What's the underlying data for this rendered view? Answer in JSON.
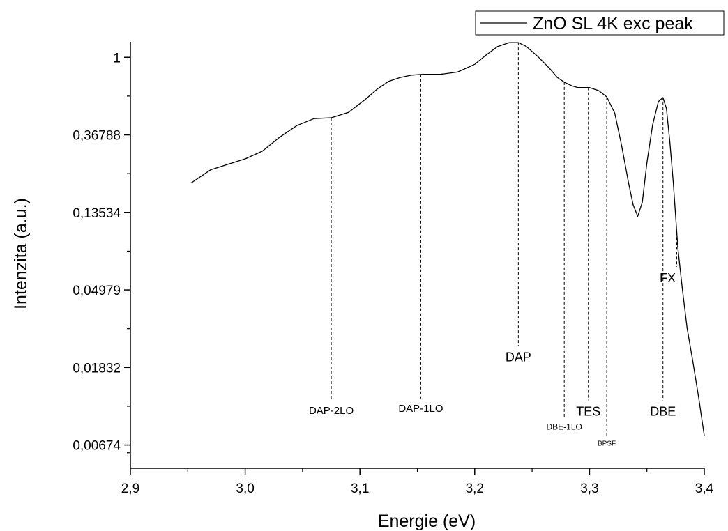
{
  "chart_data": {
    "type": "line",
    "xlabel": "Energie (eV)",
    "ylabel": "Intenzita (a.u.)",
    "xlim": [
      2.9,
      3.4
    ],
    "ylim_ln": [
      -5.3,
      0.2
    ],
    "y_scale": "natural-log",
    "grid": false,
    "legend_position": "top-right",
    "x_ticks": [
      {
        "value": 2.9,
        "label": "2,9"
      },
      {
        "value": 3.0,
        "label": "3,0"
      },
      {
        "value": 3.1,
        "label": "3,1"
      },
      {
        "value": 3.2,
        "label": "3,2"
      },
      {
        "value": 3.3,
        "label": "3,3"
      },
      {
        "value": 3.4,
        "label": "3,4"
      }
    ],
    "y_ticks": [
      {
        "value": 1,
        "label": "1"
      },
      {
        "value": 0.36788,
        "label": "0,36788"
      },
      {
        "value": 0.13534,
        "label": "0,13534"
      },
      {
        "value": 0.04979,
        "label": "0,04979"
      },
      {
        "value": 0.01832,
        "label": "0,01832"
      },
      {
        "value": 0.00674,
        "label": "0,00674"
      }
    ],
    "series": [
      {
        "name": "ZnO SL 4K exc peak",
        "x": [
          2.953,
          2.97,
          2.985,
          3.0,
          3.015,
          3.03,
          3.045,
          3.06,
          3.075,
          3.09,
          3.105,
          3.115,
          3.125,
          3.135,
          3.145,
          3.155,
          3.17,
          3.185,
          3.2,
          3.21,
          3.22,
          3.23,
          3.238,
          3.245,
          3.255,
          3.265,
          3.272,
          3.278,
          3.285,
          3.29,
          3.3,
          3.308,
          3.315,
          3.322,
          3.328,
          3.334,
          3.338,
          3.342,
          3.346,
          3.35,
          3.355,
          3.36,
          3.364,
          3.367,
          3.37,
          3.373,
          3.377,
          3.381,
          3.385,
          3.39,
          3.395,
          3.4
        ],
        "y_ln": [
          -1.62,
          -1.45,
          -1.38,
          -1.31,
          -1.21,
          -1.03,
          -0.88,
          -0.79,
          -0.78,
          -0.71,
          -0.54,
          -0.41,
          -0.31,
          -0.26,
          -0.23,
          -0.22,
          -0.22,
          -0.19,
          -0.09,
          0.03,
          0.14,
          0.19,
          0.19,
          0.14,
          0.01,
          -0.14,
          -0.26,
          -0.32,
          -0.37,
          -0.39,
          -0.39,
          -0.43,
          -0.51,
          -0.72,
          -1.14,
          -1.62,
          -1.9,
          -2.05,
          -1.87,
          -1.36,
          -0.87,
          -0.57,
          -0.52,
          -0.66,
          -1.09,
          -1.62,
          -2.46,
          -3.0,
          -3.49,
          -3.92,
          -4.38,
          -4.88
        ]
      }
    ],
    "annotations": [
      {
        "label": "DAP-2LO",
        "x": 3.075,
        "peak_ln": -0.78,
        "label_ln": -4.6,
        "size": "medium"
      },
      {
        "label": "DAP-1LO",
        "x": 3.153,
        "peak_ln": -0.22,
        "label_ln": -4.57,
        "size": "medium"
      },
      {
        "label": "DAP",
        "x": 3.238,
        "peak_ln": 0.19,
        "label_ln": -3.92,
        "size": "large"
      },
      {
        "label": "DBE-1LO",
        "x": 3.278,
        "peak_ln": -0.32,
        "label_ln": -4.8,
        "size": "small"
      },
      {
        "label": "TES",
        "x": 3.299,
        "peak_ln": -0.39,
        "label_ln": -4.62,
        "size": "large"
      },
      {
        "label": "BPSF",
        "x": 3.315,
        "peak_ln": -0.51,
        "label_ln": -5.01,
        "size": "tiny"
      },
      {
        "label": "FX",
        "x": 3.376,
        "peak_ln": -2.32,
        "label_ln": -2.9,
        "size": "large"
      },
      {
        "label": "DBE",
        "x": 3.364,
        "peak_ln": -0.52,
        "label_ln": -4.62,
        "size": "large"
      }
    ]
  }
}
